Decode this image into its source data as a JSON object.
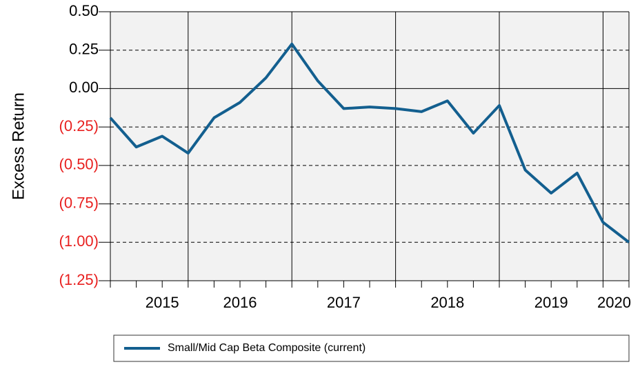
{
  "chart_data": {
    "type": "line",
    "y_label": "Excess Return",
    "categories": [
      null,
      null,
      "2015",
      null,
      null,
      "2016",
      null,
      null,
      null,
      "2017",
      null,
      null,
      null,
      "2018",
      null,
      null,
      null,
      "2019",
      null,
      null,
      "2020"
    ],
    "series": [
      {
        "name": "Small/Mid Cap Beta Composite (current)",
        "color": "#135f8f",
        "values": [
          -0.19,
          -0.38,
          -0.31,
          -0.42,
          -0.19,
          -0.09,
          0.07,
          0.29,
          0.05,
          -0.13,
          -0.12,
          -0.13,
          -0.15,
          -0.08,
          -0.29,
          -0.11,
          -0.53,
          -0.68,
          -0.55,
          -0.87,
          -1.0
        ]
      }
    ],
    "ylim": [
      -1.25,
      0.5
    ],
    "yticks": [
      {
        "value": 0.5,
        "label": "0.50"
      },
      {
        "value": 0.25,
        "label": "0.25"
      },
      {
        "value": 0,
        "label": "0.00"
      },
      {
        "value": -0.25,
        "label": "(0.25)"
      },
      {
        "value": -0.5,
        "label": "(0.50)"
      },
      {
        "value": -0.75,
        "label": "(0.75)"
      },
      {
        "value": -1,
        "label": "(1.00)"
      },
      {
        "value": -1.25,
        "label": "(1.25)"
      }
    ],
    "negative_color": "#e8201f",
    "grid": true,
    "legend": "bottom"
  }
}
